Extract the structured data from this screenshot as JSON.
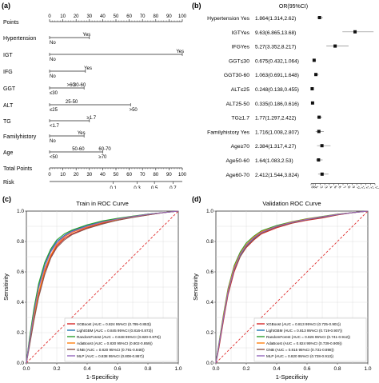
{
  "panel_a": {
    "letter": "(a)",
    "rows": [
      {
        "label": "Points",
        "ticks": [
          "0",
          "10",
          "20",
          "30",
          "40",
          "50",
          "60",
          "70",
          "80",
          "90",
          "100"
        ]
      },
      {
        "label": "Hypertension",
        "above": [
          "Yes"
        ],
        "below": [
          "No"
        ]
      },
      {
        "label": "IGT",
        "above": [
          "Yes"
        ],
        "below": [
          "No"
        ]
      },
      {
        "label": "IFG",
        "above": [
          "Yes"
        ],
        "below": [
          "No"
        ]
      },
      {
        "label": "GGT",
        "above": [
          ">60",
          "30-60"
        ],
        "below": [
          "≤30"
        ]
      },
      {
        "label": "ALT",
        "above": [
          "25-50"
        ],
        "below": [
          "≤25",
          ">50"
        ]
      },
      {
        "label": "TG",
        "above": [
          "≥1.7"
        ],
        "below": [
          "<1.7"
        ]
      },
      {
        "label": "Familyhistory",
        "above": [
          "Yes"
        ],
        "below": [
          "No"
        ]
      },
      {
        "label": "Age",
        "above": [
          "50-60",
          "60-70"
        ],
        "below": [
          "<50",
          "≥70"
        ]
      },
      {
        "label": "Total Points",
        "ticks": [
          "0",
          "10",
          "20",
          "30",
          "40",
          "50",
          "60",
          "70",
          "80",
          "90",
          "100"
        ]
      },
      {
        "label": "Risk",
        "ticks": [
          "0.1",
          "0.3",
          "0.5",
          "0.7"
        ]
      }
    ]
  },
  "panel_b": {
    "letter": "(b)",
    "header": "OR(95%CI)",
    "rows": [
      {
        "label": "Hypertension Yes",
        "value": "1.864(1.314,2.62)",
        "or": 1.864,
        "lo": 1.314,
        "hi": 2.62
      },
      {
        "label": "IGTYes",
        "value": "9.63(6.865,13.68)",
        "or": 9.63,
        "lo": 6.865,
        "hi": 13.68
      },
      {
        "label": "IFGYes",
        "value": "5.27(3.352,8.217)",
        "or": 5.27,
        "lo": 3.352,
        "hi": 8.217
      },
      {
        "label": "GGT≤30",
        "value": "0.675(0.432,1.064)",
        "or": 0.675,
        "lo": 0.432,
        "hi": 1.064
      },
      {
        "label": "GGT30-60",
        "value": "1.063(0.691,1.648)",
        "or": 1.063,
        "lo": 0.691,
        "hi": 1.648
      },
      {
        "label": "ALT≤25",
        "value": "0.248(0.138,0.455)",
        "or": 0.248,
        "lo": 0.138,
        "hi": 0.455
      },
      {
        "label": "ALT25-50",
        "value": "0.335(0.186,0.616)",
        "or": 0.335,
        "lo": 0.186,
        "hi": 0.616
      },
      {
        "label": "TG≥1.7",
        "value": "1.77(1.297,2.422)",
        "or": 1.77,
        "lo": 1.297,
        "hi": 2.422
      },
      {
        "label": "Familyhistory Yes",
        "value": "1.716(1.008,2.807)",
        "or": 1.716,
        "lo": 1.008,
        "hi": 2.807
      },
      {
        "label": "Age≥70",
        "value": "2.384(1.317,4.27)",
        "or": 2.384,
        "lo": 1.317,
        "hi": 4.27
      },
      {
        "label": "Age50-60",
        "value": "1.64(1.083,2.53)",
        "or": 1.64,
        "lo": 1.083,
        "hi": 2.53
      },
      {
        "label": "Age60-70",
        "value": "2.412(1.544,3.824)",
        "or": 2.412,
        "lo": 1.544,
        "hi": 3.824
      }
    ],
    "axis_ticks": [
      "0",
      "0.1",
      "1",
      "2",
      "3",
      "4",
      "5",
      "6",
      "7",
      "8",
      "9",
      "10",
      "11",
      "12",
      "13",
      "14"
    ]
  },
  "chart_data": [
    {
      "type": "line",
      "panel": "(c)",
      "title": "Train in ROC Curve",
      "xlabel": "1-Specificity",
      "ylabel": "Sensitivity",
      "xlim": [
        0,
        1
      ],
      "ylim": [
        0,
        1
      ],
      "ticks": [
        "0.0",
        "0.2",
        "0.4",
        "0.6",
        "0.8",
        "1.0"
      ],
      "grid": true,
      "legend_position": "bottom-right",
      "x": [
        0,
        0.02,
        0.05,
        0.08,
        0.12,
        0.16,
        0.2,
        0.25,
        0.3,
        0.4,
        0.5,
        0.6,
        0.7,
        0.8,
        0.9,
        1.0
      ],
      "series": [
        {
          "name": "XGBoost (AUC = 0.824 95%CI (0.795-0.853))",
          "color": "#d62728",
          "values": [
            0,
            0.12,
            0.3,
            0.45,
            0.6,
            0.7,
            0.77,
            0.82,
            0.85,
            0.89,
            0.92,
            0.94,
            0.96,
            0.975,
            0.99,
            1.0
          ]
        },
        {
          "name": "LightGBM (AUC = 0.845 95%CI (0.816-0.873))",
          "color": "#1f77b4",
          "values": [
            0,
            0.15,
            0.35,
            0.5,
            0.65,
            0.74,
            0.8,
            0.84,
            0.87,
            0.905,
            0.93,
            0.95,
            0.965,
            0.98,
            0.99,
            1.0
          ]
        },
        {
          "name": "RandomForest (AUC = 0.848 95%CI (0.820-0.876))",
          "color": "#2ca02c",
          "values": [
            0,
            0.16,
            0.36,
            0.52,
            0.66,
            0.75,
            0.81,
            0.85,
            0.875,
            0.91,
            0.935,
            0.952,
            0.967,
            0.98,
            0.99,
            1.0
          ]
        },
        {
          "name": "AdaBoost (AUC = 0.830 95%CI (0.802-0.859))",
          "color": "#ff7f0e",
          "values": [
            0,
            0.13,
            0.31,
            0.46,
            0.61,
            0.71,
            0.78,
            0.83,
            0.86,
            0.895,
            0.925,
            0.945,
            0.962,
            0.978,
            0.99,
            1.0
          ]
        },
        {
          "name": "GNB (AUC = 0.820 95%CI (0.791-0.848))",
          "color": "#8c564b",
          "values": [
            0,
            0.11,
            0.28,
            0.43,
            0.58,
            0.69,
            0.76,
            0.81,
            0.845,
            0.885,
            0.915,
            0.94,
            0.958,
            0.975,
            0.99,
            1.0
          ]
        },
        {
          "name": "MLP (AUC = 0.838 95%CI (0.808-0.867))",
          "color": "#9467bd",
          "values": [
            0,
            0.14,
            0.33,
            0.49,
            0.63,
            0.73,
            0.79,
            0.835,
            0.865,
            0.9,
            0.928,
            0.948,
            0.964,
            0.979,
            0.99,
            1.0
          ]
        }
      ]
    },
    {
      "type": "line",
      "panel": "(d)",
      "title": "Validation ROC Curve",
      "xlabel": "1-Specificity",
      "ylabel": "Sensitivity",
      "xlim": [
        0,
        1
      ],
      "ylim": [
        0,
        1
      ],
      "ticks": [
        "0.0",
        "0.2",
        "0.4",
        "0.6",
        "0.8",
        "1.0"
      ],
      "grid": true,
      "legend_position": "bottom-right",
      "x": [
        0,
        0.02,
        0.05,
        0.08,
        0.12,
        0.16,
        0.2,
        0.25,
        0.3,
        0.4,
        0.5,
        0.6,
        0.7,
        0.8,
        0.9,
        1.0
      ],
      "series": [
        {
          "name": "XGBoost (AUC = 0.813 95%CI (0.725-0.901))",
          "color": "#d62728",
          "values": [
            0,
            0.1,
            0.28,
            0.45,
            0.6,
            0.7,
            0.76,
            0.81,
            0.85,
            0.89,
            0.92,
            0.94,
            0.955,
            0.975,
            0.99,
            1.0
          ]
        },
        {
          "name": "LightGBM (AUC = 0.813 95%CI (0.719-0.907))",
          "color": "#1f77b4",
          "values": [
            0,
            0.12,
            0.3,
            0.47,
            0.62,
            0.71,
            0.77,
            0.82,
            0.86,
            0.9,
            0.925,
            0.945,
            0.96,
            0.978,
            0.99,
            1.0
          ]
        },
        {
          "name": "RandomForest (AUC = 0.826 95%CI (0.741-0.912))",
          "color": "#2ca02c",
          "values": [
            0,
            0.13,
            0.32,
            0.49,
            0.64,
            0.73,
            0.79,
            0.835,
            0.87,
            0.905,
            0.93,
            0.95,
            0.965,
            0.98,
            0.99,
            1.0
          ]
        },
        {
          "name": "AdaBoost (AUC = 0.824 95%CI (0.739-0.909))",
          "color": "#ff7f0e",
          "values": [
            0,
            0.12,
            0.31,
            0.48,
            0.63,
            0.72,
            0.78,
            0.83,
            0.865,
            0.9,
            0.928,
            0.948,
            0.963,
            0.979,
            0.99,
            1.0
          ]
        },
        {
          "name": "GNB (AUC = 0.815 95%CI (0.731-0.898))",
          "color": "#8c564b",
          "values": [
            0,
            0.11,
            0.29,
            0.46,
            0.61,
            0.7,
            0.765,
            0.815,
            0.855,
            0.895,
            0.922,
            0.943,
            0.958,
            0.976,
            0.99,
            1.0
          ]
        },
        {
          "name": "MLP (AUC = 0.820 95%CI (0.728-0.913))",
          "color": "#9467bd",
          "values": [
            0,
            0.12,
            0.3,
            0.47,
            0.62,
            0.715,
            0.775,
            0.825,
            0.86,
            0.9,
            0.926,
            0.946,
            0.962,
            0.978,
            0.99,
            1.0
          ]
        }
      ]
    }
  ]
}
